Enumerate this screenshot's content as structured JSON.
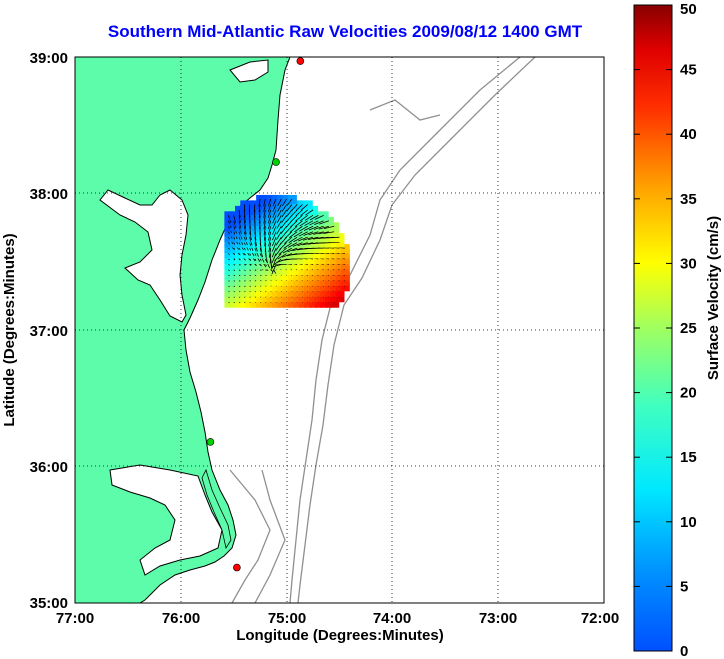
{
  "title": "Southern Mid-Atlantic Raw Velocities 2009/08/12 1400 GMT",
  "map": {
    "xlabel": "Longitude (Degrees:Minutes)",
    "ylabel": "Latitude (Degrees:Minutes)",
    "lon_range": [
      -77,
      -72
    ],
    "lat_range": [
      35,
      39
    ],
    "x_ticks": [
      "77:00",
      "76:00",
      "75:00",
      "74:00",
      "73:00",
      "72:00"
    ],
    "y_ticks": [
      "39:00",
      "38:00",
      "37:00",
      "36:00",
      "35:00"
    ],
    "land_color": "#5dfcaa",
    "coast_color": "#000000",
    "bathymetry_color": "#909090",
    "grid": "dotted",
    "stations": [
      {
        "color": "#ff0000",
        "lon": -74.87,
        "lat": 38.97
      },
      {
        "color": "#00d000",
        "lon": -75.1,
        "lat": 38.23
      },
      {
        "color": "#00d000",
        "lon": -75.72,
        "lat": 36.18
      },
      {
        "color": "#ff0000",
        "lon": -75.47,
        "lat": 35.26
      }
    ]
  },
  "colorbar": {
    "label": "Surface Velocity (cm/s)",
    "min": 0,
    "max": 50,
    "ticks": [
      "0",
      "5",
      "10",
      "15",
      "20",
      "25",
      "30",
      "35",
      "40",
      "45",
      "50"
    ],
    "colormap": "jet"
  },
  "velocity_field": {
    "center_lon": -75.1,
    "center_lat": 37.45,
    "lon_extent": [
      -75.55,
      -74.25
    ],
    "lat_extent": [
      37.2,
      38.2
    ],
    "speed_range_cm_s": [
      10,
      50
    ]
  }
}
